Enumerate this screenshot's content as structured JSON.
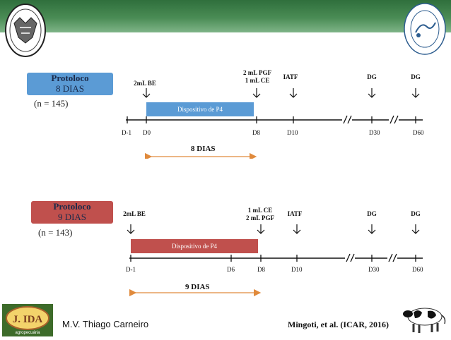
{
  "header": {
    "left_logo": "university-seal",
    "right_logo": "reproduction-department-seal"
  },
  "protocol8": {
    "title_line1": "Protoloco",
    "title_line2": "8 DIAS",
    "n": "(n = 145)",
    "label_be": "2mL BE",
    "label_pgf_line1": "2 mL PGF",
    "label_pgf_line2": "1 mL CE",
    "label_iatf": "IATF",
    "label_dg1": "DG",
    "label_dg2": "DG",
    "device": "Dispositivo de P4",
    "ticks": {
      "dm1": "D-1",
      "d0": "D0",
      "d8": "D8",
      "d10": "D10",
      "d30": "D30",
      "d60": "D60"
    },
    "duration": "8 DIAS",
    "colors": {
      "box": "#5b9bd5",
      "device": "#5b9bd5",
      "duration_arrow": "#e08a3c"
    }
  },
  "protocol9": {
    "title_line1": "Protoloco",
    "title_line2": "9 DIAS",
    "n": "(n = 143)",
    "label_be": "2mL BE",
    "label_ce_line1": "1 mL CE",
    "label_ce_line2": "2 mL PGF",
    "label_iatf": "IATF",
    "label_dg1": "DG",
    "label_dg2": "DG",
    "device": "Dispositivo de P4",
    "ticks": {
      "dm1": "D-1",
      "d6": "D6",
      "d8": "D8",
      "d10": "D10",
      "d30": "D30",
      "d60": "D60"
    },
    "duration": "9 DIAS",
    "colors": {
      "box": "#c0504d",
      "device": "#c0504d",
      "duration_arrow": "#e08a3c"
    }
  },
  "footer": {
    "author": "M.V. Thiago Carneiro",
    "reference": "Mingoti, et al. (ICAR, 2016)",
    "left_logo_text": "J. IDA",
    "left_logo_subtext": "agropecuária",
    "cow_image": "holstein-cow"
  }
}
